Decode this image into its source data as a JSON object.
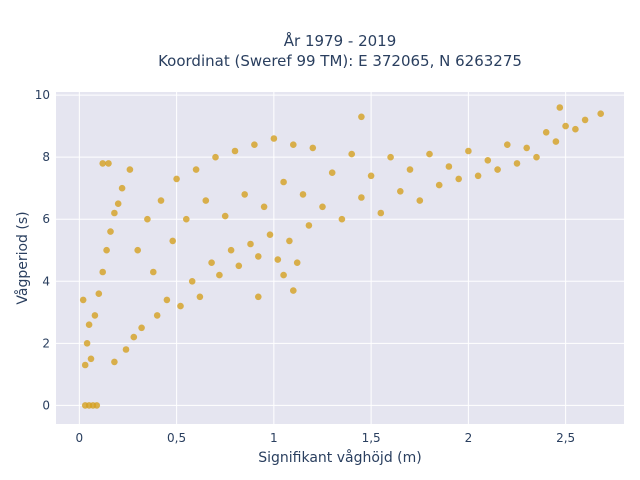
{
  "chart_data": {
    "type": "scatter",
    "title_line1": "År 1979 - 2019",
    "title_line2": "Koordinat (Sweref 99 TM): E 372065, N 6263275",
    "xlabel": "Signifikant våghöjd (m)",
    "ylabel": "Vågperiod (s)",
    "xlim": [
      -0.12,
      2.8
    ],
    "ylim": [
      -0.6,
      10.1
    ],
    "xticks": [
      0,
      0.5,
      1,
      1.5,
      2,
      2.5
    ],
    "xtick_labels": [
      "0",
      "0,5",
      "1",
      "1,5",
      "2",
      "2,5"
    ],
    "yticks": [
      0,
      2,
      4,
      6,
      8,
      10
    ],
    "ytick_labels": [
      "0",
      "2",
      "4",
      "6",
      "8",
      "10"
    ],
    "grid": true,
    "colors": {
      "marker": "#d4a020",
      "plot_bg": "#e5e5f0",
      "grid": "#ffffff"
    },
    "series": [
      {
        "points": [
          [
            0.03,
            0
          ],
          [
            0.05,
            0
          ],
          [
            0.07,
            0
          ],
          [
            0.09,
            0
          ],
          [
            0.02,
            3.4
          ],
          [
            0.03,
            1.3
          ],
          [
            0.04,
            2.0
          ],
          [
            0.05,
            2.6
          ],
          [
            0.06,
            1.5
          ],
          [
            0.08,
            2.9
          ],
          [
            0.1,
            3.6
          ],
          [
            0.12,
            4.3
          ],
          [
            0.14,
            5.0
          ],
          [
            0.16,
            5.6
          ],
          [
            0.18,
            6.2
          ],
          [
            0.18,
            1.4
          ],
          [
            0.2,
            6.5
          ],
          [
            0.22,
            7.0
          ],
          [
            0.24,
            1.8
          ],
          [
            0.26,
            7.6
          ],
          [
            0.28,
            2.2
          ],
          [
            0.3,
            5.0
          ],
          [
            0.32,
            2.5
          ],
          [
            0.35,
            6.0
          ],
          [
            0.38,
            4.3
          ],
          [
            0.4,
            2.9
          ],
          [
            0.42,
            6.6
          ],
          [
            0.45,
            3.4
          ],
          [
            0.48,
            5.3
          ],
          [
            0.5,
            7.3
          ],
          [
            0.52,
            3.2
          ],
          [
            0.55,
            6.0
          ],
          [
            0.58,
            4.0
          ],
          [
            0.6,
            7.6
          ],
          [
            0.62,
            3.5
          ],
          [
            0.65,
            6.6
          ],
          [
            0.68,
            4.6
          ],
          [
            0.7,
            8.0
          ],
          [
            0.72,
            4.2
          ],
          [
            0.75,
            6.1
          ],
          [
            0.78,
            5.0
          ],
          [
            0.8,
            8.2
          ],
          [
            0.82,
            4.5
          ],
          [
            0.85,
            6.8
          ],
          [
            0.88,
            5.2
          ],
          [
            0.9,
            8.4
          ],
          [
            0.92,
            4.8
          ],
          [
            0.95,
            6.4
          ],
          [
            0.98,
            5.5
          ],
          [
            1.0,
            8.6
          ],
          [
            1.02,
            4.7
          ],
          [
            1.05,
            7.2
          ],
          [
            1.08,
            5.3
          ],
          [
            1.1,
            8.4
          ],
          [
            1.12,
            4.6
          ],
          [
            1.15,
            6.8
          ],
          [
            1.18,
            5.8
          ],
          [
            1.2,
            8.3
          ],
          [
            1.25,
            6.4
          ],
          [
            1.3,
            7.5
          ],
          [
            1.35,
            6.0
          ],
          [
            1.4,
            8.1
          ],
          [
            1.45,
            6.7
          ],
          [
            1.5,
            7.4
          ],
          [
            1.55,
            6.2
          ],
          [
            1.6,
            8.0
          ],
          [
            1.65,
            6.9
          ],
          [
            1.7,
            7.6
          ],
          [
            1.75,
            6.6
          ],
          [
            1.8,
            8.1
          ],
          [
            1.85,
            7.1
          ],
          [
            1.9,
            7.7
          ],
          [
            1.95,
            7.3
          ],
          [
            2.0,
            8.2
          ],
          [
            2.05,
            7.4
          ],
          [
            2.1,
            7.9
          ],
          [
            2.15,
            7.6
          ],
          [
            2.2,
            8.4
          ],
          [
            2.25,
            7.8
          ],
          [
            2.3,
            8.3
          ],
          [
            2.35,
            8.0
          ],
          [
            2.4,
            8.8
          ],
          [
            2.45,
            8.5
          ],
          [
            2.5,
            9.0
          ],
          [
            2.55,
            8.9
          ],
          [
            2.6,
            9.2
          ],
          [
            1.45,
            9.3
          ],
          [
            2.47,
            9.6
          ],
          [
            2.68,
            9.4
          ],
          [
            0.12,
            7.8
          ],
          [
            0.15,
            7.8
          ],
          [
            1.1,
            3.7
          ],
          [
            0.92,
            3.5
          ],
          [
            1.05,
            4.2
          ]
        ]
      }
    ]
  }
}
